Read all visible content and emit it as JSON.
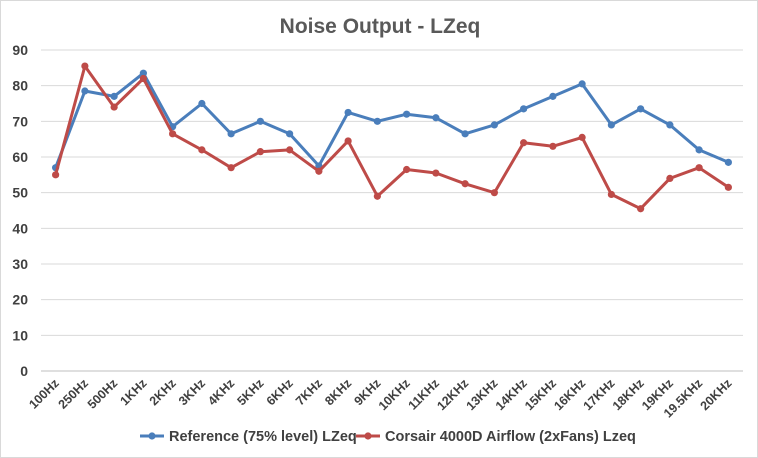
{
  "chart_data": {
    "type": "line",
    "title": "Noise Output  - LZeq",
    "xlabel": "",
    "ylabel": "",
    "ylim": [
      0,
      90
    ],
    "yticks": [
      0,
      10,
      20,
      30,
      40,
      50,
      60,
      70,
      80,
      90
    ],
    "grid": "horizontal",
    "legend_position": "bottom",
    "categories": [
      "100Hz",
      "250Hz",
      "500Hz",
      "1KHz",
      "2KHz",
      "3KHz",
      "4KHz",
      "5KHz",
      "6KHz",
      "7KHz",
      "8KHz",
      "9KHz",
      "10KHz",
      "11KHz",
      "12KHz",
      "13KHz",
      "14KHz",
      "15KHz",
      "16KHz",
      "17KHz",
      "18KHz",
      "19KHz",
      "19.5KHz",
      "20KHz"
    ],
    "series": [
      {
        "name": "Reference (75% level) LZeq",
        "color": "#4a7ebb",
        "values": [
          57.0,
          78.5,
          77.0,
          83.5,
          68.5,
          75.0,
          66.5,
          70.0,
          66.5,
          57.5,
          72.5,
          70.0,
          72.0,
          71.0,
          66.5,
          69.0,
          73.5,
          77.0,
          80.5,
          69.0,
          73.5,
          69.0,
          62.0,
          58.5
        ]
      },
      {
        "name": "Corsair 4000D Airflow (2xFans) Lzeq",
        "color": "#be4b48",
        "values": [
          55.0,
          85.5,
          74.0,
          82.0,
          66.5,
          62.0,
          57.0,
          61.5,
          62.0,
          56.0,
          64.5,
          49.0,
          56.5,
          55.5,
          52.5,
          50.0,
          64.0,
          63.0,
          65.5,
          49.5,
          45.5,
          54.0,
          57.0,
          51.5
        ]
      }
    ]
  }
}
